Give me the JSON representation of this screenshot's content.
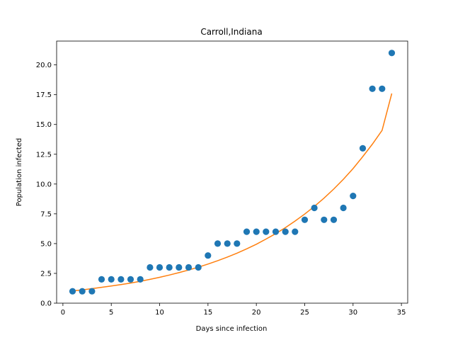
{
  "chart_data": {
    "type": "scatter",
    "title": "Carroll,Indiana",
    "xlabel": "Days since infection",
    "ylabel": "Population infected",
    "xlim": [
      -0.65,
      35.65
    ],
    "ylim": [
      0,
      22.0
    ],
    "xticks": [
      0,
      5,
      10,
      15,
      20,
      25,
      30,
      35
    ],
    "xtick_labels": [
      "0",
      "5",
      "10",
      "15",
      "20",
      "25",
      "30",
      "35"
    ],
    "yticks": [
      0,
      2.5,
      5,
      7.5,
      10,
      12.5,
      15,
      17.5,
      20
    ],
    "ytick_labels": [
      "0.0",
      "2.5",
      "5.0",
      "7.5",
      "10.0",
      "12.5",
      "15.0",
      "17.5",
      "20.0"
    ],
    "grid": false,
    "series": [
      {
        "type": "scatter",
        "color": "#1f77b4",
        "x": [
          1,
          2,
          3,
          4,
          5,
          6,
          7,
          8,
          9,
          10,
          11,
          12,
          13,
          14,
          15,
          16,
          17,
          18,
          19,
          20,
          21,
          22,
          23,
          24,
          25,
          26,
          27,
          28,
          29,
          30,
          31,
          32,
          33,
          34
        ],
        "y": [
          1,
          1,
          1,
          2,
          2,
          2,
          2,
          2,
          3,
          3,
          3,
          3,
          3,
          3,
          4,
          5,
          5,
          5,
          6,
          6,
          6,
          6,
          6,
          6,
          7,
          8,
          7,
          7,
          8,
          9,
          13,
          18,
          18,
          21
        ]
      },
      {
        "type": "line",
        "color": "#ff7f0e",
        "x": [
          1,
          2,
          3,
          4,
          5,
          6,
          7,
          8,
          9,
          10,
          11,
          12,
          13,
          14,
          15,
          16,
          17,
          18,
          19,
          20,
          21,
          22,
          23,
          24,
          25,
          26,
          27,
          28,
          29,
          30,
          31,
          32,
          33,
          34
        ],
        "y": [
          1.03,
          1.12,
          1.22,
          1.33,
          1.44,
          1.56,
          1.69,
          1.84,
          2.0,
          2.17,
          2.36,
          2.56,
          2.78,
          3.02,
          3.28,
          3.56,
          3.87,
          4.2,
          4.56,
          4.95,
          5.38,
          5.84,
          6.34,
          6.89,
          7.48,
          8.12,
          8.82,
          9.58,
          10.4,
          11.3,
          12.3,
          13.35,
          14.5,
          17.6
        ]
      }
    ]
  }
}
